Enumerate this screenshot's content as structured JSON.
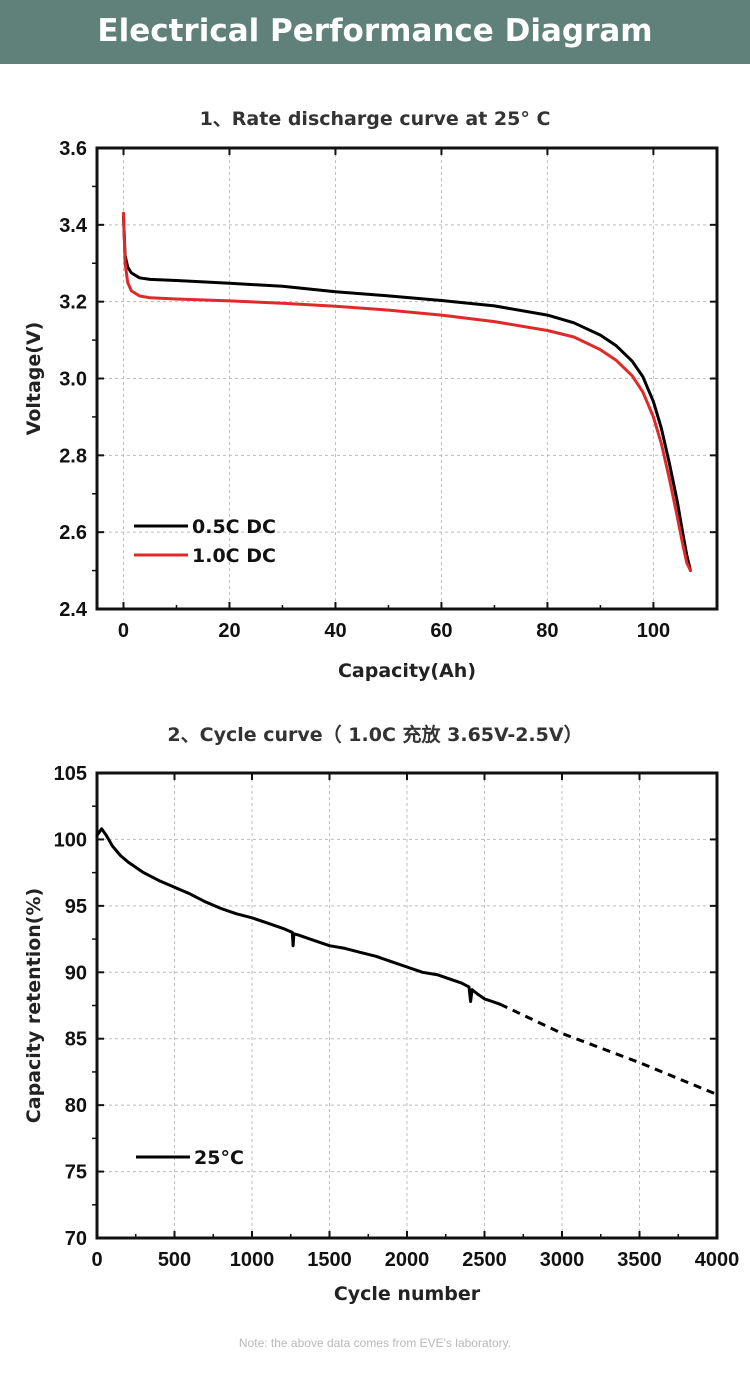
{
  "header": {
    "title": "Electrical Performance Diagram"
  },
  "note": "Note: the above data comes from EVE's laboratory.",
  "chart_data": [
    {
      "type": "line",
      "title": "1、Rate discharge curve at 25° C",
      "xlabel": "Capacity(Ah)",
      "ylabel": "Voltage(V)",
      "xlim": [
        -5,
        112
      ],
      "ylim": [
        2.4,
        3.6
      ],
      "xticks": [
        "0",
        "20",
        "40",
        "60",
        "80",
        "100"
      ],
      "yticks": [
        "2.4",
        "2.6",
        "2.8",
        "3.0",
        "3.2",
        "3.4",
        "3.6"
      ],
      "legend_position": "bottom-left",
      "grid": true,
      "series": [
        {
          "name": "0.5C DC",
          "color": "#000000",
          "x": [
            0,
            0.3,
            0.8,
            1.5,
            3,
            5,
            10,
            20,
            30,
            40,
            50,
            60,
            70,
            80,
            85,
            90,
            93,
            96,
            98,
            100,
            101.5,
            103,
            104.5,
            105.5,
            106.3,
            107
          ],
          "y": [
            3.42,
            3.32,
            3.29,
            3.275,
            3.262,
            3.258,
            3.255,
            3.248,
            3.24,
            3.226,
            3.215,
            3.203,
            3.189,
            3.165,
            3.145,
            3.113,
            3.085,
            3.045,
            3.005,
            2.94,
            2.87,
            2.78,
            2.68,
            2.6,
            2.54,
            2.5
          ]
        },
        {
          "name": "1.0C DC",
          "color": "#e02a2a",
          "x": [
            0,
            0.3,
            0.8,
            1.5,
            3,
            5,
            10,
            20,
            30,
            40,
            50,
            60,
            70,
            80,
            85,
            90,
            93,
            96,
            98,
            100,
            101.5,
            103,
            104.5,
            105.5,
            106.3,
            107
          ],
          "y": [
            3.43,
            3.3,
            3.25,
            3.228,
            3.215,
            3.21,
            3.207,
            3.202,
            3.196,
            3.188,
            3.178,
            3.165,
            3.148,
            3.125,
            3.108,
            3.075,
            3.047,
            3.007,
            2.965,
            2.9,
            2.83,
            2.74,
            2.64,
            2.57,
            2.52,
            2.5
          ]
        }
      ]
    },
    {
      "type": "line",
      "title": "2、Cycle curve（ 1.0C 充放 3.65V-2.5V）",
      "xlabel": "Cycle number",
      "ylabel": "Capacity retention(%)",
      "xlim": [
        0,
        4000
      ],
      "ylim": [
        70,
        105
      ],
      "xticks": [
        "0",
        "500",
        "1000",
        "1500",
        "2000",
        "2500",
        "3000",
        "3500",
        "4000"
      ],
      "yticks": [
        "70",
        "75",
        "80",
        "85",
        "90",
        "95",
        "100",
        "105"
      ],
      "legend_position": "bottom-left",
      "grid": true,
      "series": [
        {
          "name": "25°C",
          "color": "#000000",
          "x": [
            0,
            30,
            60,
            100,
            150,
            200,
            300,
            400,
            500,
            600,
            700,
            800,
            900,
            1000,
            1100,
            1200,
            1260,
            1265,
            1270,
            1300,
            1400,
            1500,
            1600,
            1700,
            1800,
            1900,
            2000,
            2100,
            2200,
            2300,
            2350,
            2400,
            2410,
            2420,
            2450,
            2500,
            2550,
            2600
          ],
          "y": [
            100.3,
            100.8,
            100.3,
            99.5,
            98.8,
            98.3,
            97.5,
            96.9,
            96.4,
            95.9,
            95.3,
            94.8,
            94.4,
            94.1,
            93.7,
            93.3,
            93.0,
            92.0,
            92.9,
            92.8,
            92.4,
            92.0,
            91.8,
            91.5,
            91.2,
            90.8,
            90.4,
            90.0,
            89.8,
            89.4,
            89.2,
            88.9,
            87.8,
            88.7,
            88.4,
            88.0,
            87.8,
            87.6
          ]
        },
        {
          "name": "",
          "color": "#000000",
          "dashed": true,
          "x": [
            2600,
            3000,
            3500,
            4000
          ],
          "y": [
            87.6,
            85.4,
            83.2,
            80.8
          ]
        }
      ]
    }
  ]
}
